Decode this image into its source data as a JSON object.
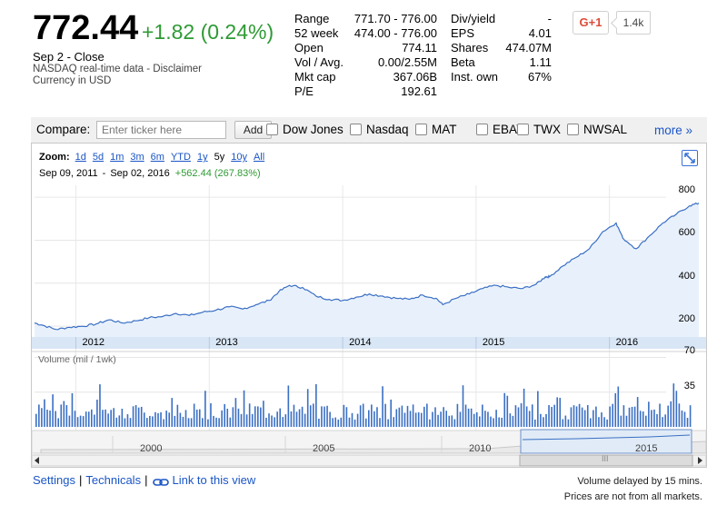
{
  "quote": {
    "price": "772.44",
    "change": "+1.82 (0.24%)",
    "close_date": "Sep 2 - Close",
    "source_prefix": "NASDAQ real-time data - ",
    "disclaimer_link": "Disclaimer",
    "currency": "Currency in USD",
    "up_color": "#2e9a34"
  },
  "stats_left": [
    {
      "label": "Range",
      "value": "771.70 - 776.00"
    },
    {
      "label": "52 week",
      "value": "474.00 - 776.00"
    },
    {
      "label": "Open",
      "value": "774.11"
    },
    {
      "label": "Vol / Avg.",
      "value": "0.00/2.55M"
    },
    {
      "label": "Mkt cap",
      "value": "367.06B"
    },
    {
      "label": "P/E",
      "value": "192.61"
    }
  ],
  "stats_right": [
    {
      "label": "Div/yield",
      "value": "-"
    },
    {
      "label": "EPS",
      "value": "4.01"
    },
    {
      "label": "Shares",
      "value": "474.07M"
    },
    {
      "label": "Beta",
      "value": "1.11"
    },
    {
      "label": "Inst. own",
      "value": "67%"
    }
  ],
  "social": {
    "gplus_label": "G+1",
    "count": "1.4k"
  },
  "compare": {
    "label": "Compare:",
    "input_placeholder": "Enter ticker here",
    "add_label": "Add",
    "tickers": [
      "Dow Jones",
      "Nasdaq",
      "MAT",
      "EBAY",
      "TWX",
      "NWSAL"
    ],
    "more_label": "more »"
  },
  "zoom": {
    "label": "Zoom:",
    "options": [
      "1d",
      "5d",
      "1m",
      "3m",
      "6m",
      "YTD",
      "1y",
      "5y",
      "10y",
      "All"
    ],
    "active": "5y"
  },
  "range": {
    "start": "Sep 09, 2011",
    "end": "Sep 02, 2016",
    "gain": "+562.44 (267.83%)"
  },
  "chart_data": [
    {
      "type": "area",
      "title": "",
      "x_ticks": [
        "2012",
        "2013",
        "2014",
        "2015",
        "2016"
      ],
      "y_ticks": [
        "200",
        "400",
        "600",
        "800"
      ],
      "ylim": [
        150,
        830
      ],
      "xlim": [
        2011.69,
        2016.67
      ],
      "series": [
        {
          "x": [
            2011.69,
            2011.75,
            2011.85,
            2011.95,
            2012.05,
            2012.15,
            2012.25,
            2012.35,
            2012.45,
            2012.55,
            2012.65,
            2012.75,
            2012.85,
            2012.95,
            2013.05,
            2013.15,
            2013.25,
            2013.35,
            2013.45,
            2013.52,
            2013.6,
            2013.7,
            2013.8,
            2013.9,
            2014.0,
            2014.1,
            2014.2,
            2014.3,
            2014.4,
            2014.5,
            2014.6,
            2014.7,
            2014.75,
            2014.85,
            2014.95,
            2015.05,
            2015.15,
            2015.25,
            2015.35,
            2015.45,
            2015.52,
            2015.55,
            2015.65,
            2015.75,
            2015.85,
            2015.95,
            2016.05,
            2016.1,
            2016.2,
            2016.3,
            2016.4,
            2016.5,
            2016.6,
            2016.67
          ],
          "values": [
            215,
            205,
            185,
            195,
            200,
            210,
            230,
            215,
            225,
            240,
            245,
            260,
            250,
            265,
            275,
            290,
            280,
            300,
            320,
            360,
            390,
            380,
            340,
            325,
            320,
            335,
            350,
            340,
            330,
            325,
            345,
            330,
            300,
            330,
            350,
            375,
            390,
            380,
            375,
            395,
            430,
            430,
            480,
            520,
            560,
            640,
            680,
            610,
            560,
            620,
            680,
            720,
            760,
            772
          ]
        }
      ]
    },
    {
      "type": "bar",
      "title": "Volume (mil / 1wk)",
      "y_ticks": [
        "35",
        "70"
      ],
      "ylim": [
        0,
        75
      ]
    }
  ],
  "navigator": {
    "x_ticks": [
      "2000",
      "2005",
      "2010",
      "2015"
    ],
    "grip": "III"
  },
  "footer": {
    "settings": "Settings",
    "technicals": "Technicals",
    "link_view": "Link to this view",
    "note1": "Volume delayed by 15 mins.",
    "note2": "Prices are not from all markets."
  }
}
